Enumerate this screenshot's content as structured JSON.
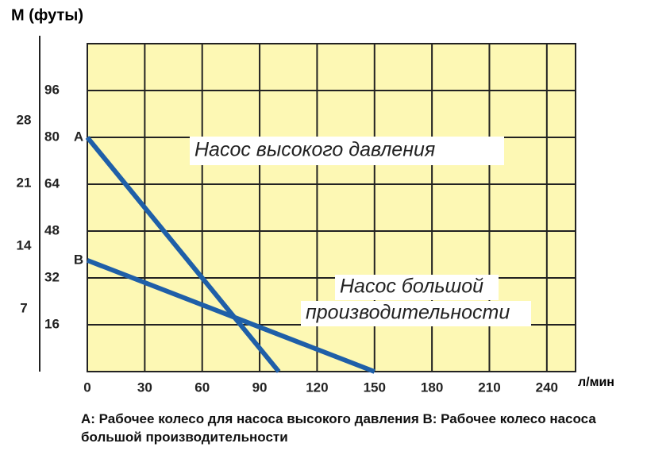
{
  "chart_data": {
    "type": "line",
    "y_label": "М (футы)",
    "x_label": "л/мин",
    "caption": "A: Рабочее колесо для насоса высокого давления B: Рабочее колесо насоса большой производительности",
    "annotations": [
      "Насос высокого давления",
      "Насос большой",
      "производительности"
    ],
    "series": [
      {
        "name": "A",
        "color": "#1f5fa8",
        "x": [
          0,
          100
        ],
        "values": [
          80,
          0
        ]
      },
      {
        "name": "B",
        "color": "#1f5fa8",
        "x": [
          0,
          150
        ],
        "values": [
          38,
          0
        ]
      }
    ],
    "xlim": [
      0,
      255
    ],
    "xticks": [
      0,
      30,
      60,
      90,
      120,
      150,
      180,
      210,
      240
    ],
    "ylim": [
      0,
      112
    ],
    "yticks": [
      16,
      32,
      48,
      64,
      80,
      96
    ],
    "y2lim": [
      0,
      36.6
    ],
    "y2ticks": [
      7,
      14,
      21,
      28
    ],
    "grid": true,
    "background": "#fdf8b4"
  }
}
